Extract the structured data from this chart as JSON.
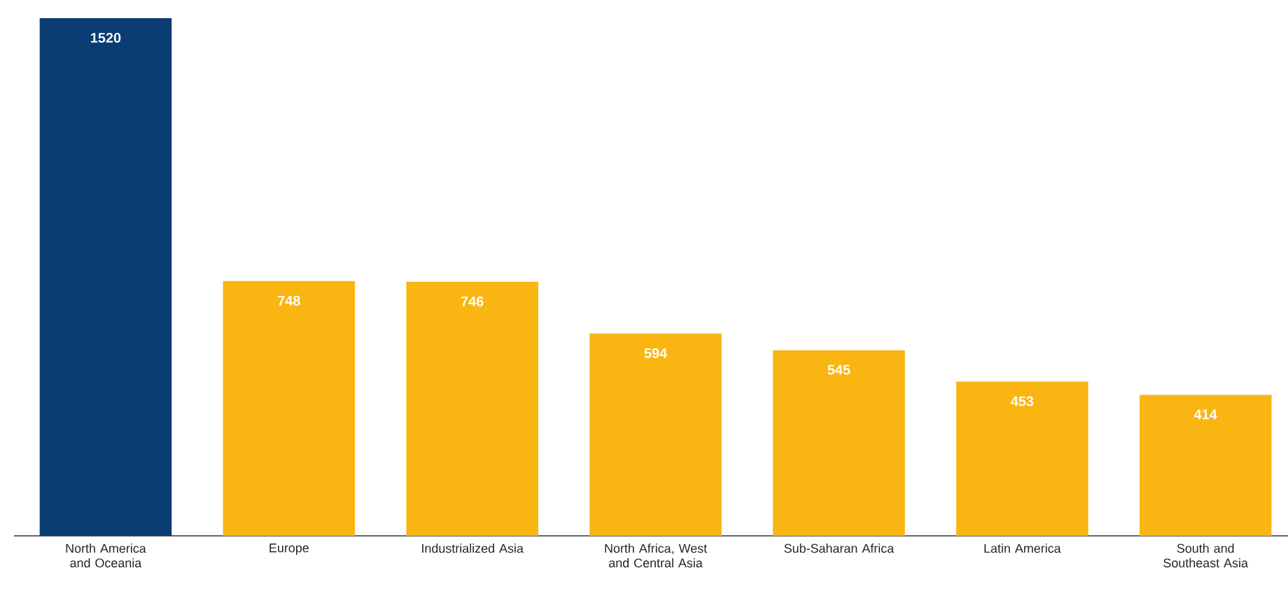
{
  "chart_data": {
    "type": "bar",
    "categories": [
      "North America and Oceania",
      "Europe",
      "Industrialized Asia",
      "North Africa, West and Central Asia",
      "Sub-Saharan Africa",
      "Latin America",
      "South and Southeast Asia"
    ],
    "values": [
      1520,
      748,
      746,
      594,
      545,
      453,
      414
    ],
    "colors": [
      "#0b3c73",
      "#f9b512",
      "#f9b512",
      "#f9b512",
      "#f9b512",
      "#f9b512",
      "#f9b512"
    ],
    "tick_labels": "x",
    "data_labels": true
  }
}
